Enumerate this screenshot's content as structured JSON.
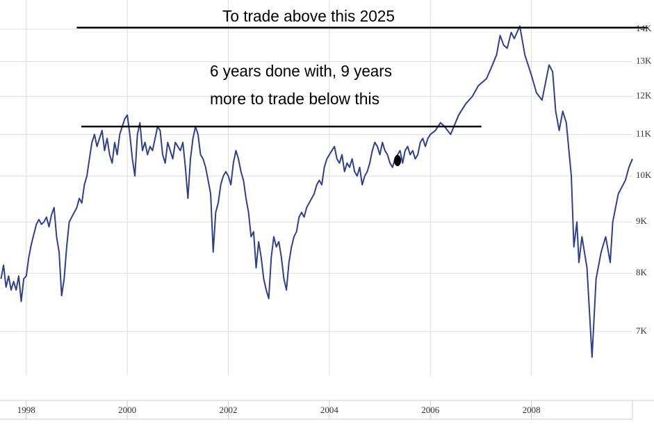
{
  "chart_data": {
    "type": "line",
    "color": "#2e3f8f",
    "log_scale": true,
    "grid": true,
    "x": [
      1997.5,
      1997.55,
      1997.6,
      1997.65,
      1997.7,
      1997.75,
      1997.8,
      1997.85,
      1997.9,
      1997.95,
      1998.0,
      1998.05,
      1998.1,
      1998.15,
      1998.2,
      1998.25,
      1998.3,
      1998.35,
      1998.4,
      1998.45,
      1998.5,
      1998.55,
      1998.6,
      1998.65,
      1998.7,
      1998.75,
      1998.8,
      1998.85,
      1998.9,
      1998.95,
      1999.0,
      1999.05,
      1999.1,
      1999.15,
      1999.2,
      1999.25,
      1999.3,
      1999.35,
      1999.4,
      1999.45,
      1999.5,
      1999.55,
      1999.6,
      1999.65,
      1999.7,
      1999.75,
      1999.8,
      1999.85,
      1999.9,
      1999.95,
      2000.0,
      2000.05,
      2000.1,
      2000.15,
      2000.2,
      2000.25,
      2000.3,
      2000.35,
      2000.4,
      2000.45,
      2000.5,
      2000.55,
      2000.6,
      2000.65,
      2000.7,
      2000.75,
      2000.8,
      2000.85,
      2000.9,
      2000.95,
      2001.0,
      2001.05,
      2001.1,
      2001.15,
      2001.2,
      2001.25,
      2001.3,
      2001.35,
      2001.4,
      2001.45,
      2001.5,
      2001.55,
      2001.6,
      2001.65,
      2001.7,
      2001.75,
      2001.8,
      2001.85,
      2001.9,
      2001.95,
      2002.0,
      2002.05,
      2002.1,
      2002.15,
      2002.2,
      2002.25,
      2002.3,
      2002.35,
      2002.4,
      2002.45,
      2002.5,
      2002.55,
      2002.6,
      2002.65,
      2002.7,
      2002.75,
      2002.8,
      2002.85,
      2002.9,
      2002.95,
      2003.0,
      2003.05,
      2003.1,
      2003.15,
      2003.2,
      2003.25,
      2003.3,
      2003.35,
      2003.4,
      2003.45,
      2003.5,
      2003.55,
      2003.6,
      2003.65,
      2003.7,
      2003.75,
      2003.8,
      2003.85,
      2003.9,
      2003.95,
      2004.0,
      2004.05,
      2004.1,
      2004.15,
      2004.2,
      2004.25,
      2004.3,
      2004.35,
      2004.4,
      2004.45,
      2004.5,
      2004.55,
      2004.6,
      2004.65,
      2004.7,
      2004.75,
      2004.8,
      2004.85,
      2004.9,
      2004.95,
      2005.0,
      2005.05,
      2005.1,
      2005.15,
      2005.2,
      2005.25,
      2005.3,
      2005.35,
      2005.4,
      2005.45,
      2005.5,
      2005.55,
      2005.6,
      2005.65,
      2005.7,
      2005.75,
      2005.8,
      2005.85,
      2005.9,
      2005.95,
      2006.0,
      2006.1,
      2006.2,
      2006.28,
      2006.4,
      2006.56,
      2006.7,
      2006.83,
      2006.95,
      2007.11,
      2007.2,
      2007.31,
      2007.38,
      2007.45,
      2007.52,
      2007.6,
      2007.66,
      2007.77,
      2007.87,
      2008.0,
      2008.1,
      2008.21,
      2008.35,
      2008.42,
      2008.48,
      2008.55,
      2008.62,
      2008.69,
      2008.79,
      2008.84,
      2008.9,
      2008.94,
      2009.0,
      2009.1,
      2009.2,
      2009.28,
      2009.38,
      2009.47,
      2009.56,
      2009.61,
      2009.72,
      2009.86,
      2009.93,
      2010.0
    ],
    "values": [
      7900,
      8150,
      7750,
      7950,
      7700,
      7850,
      7700,
      7950,
      7500,
      7900,
      7950,
      8300,
      8550,
      8750,
      8950,
      9050,
      8950,
      9000,
      9100,
      8900,
      9150,
      9300,
      8700,
      8400,
      7600,
      7900,
      8500,
      9000,
      9100,
      9200,
      9300,
      9500,
      9400,
      9800,
      10000,
      10400,
      10800,
      11000,
      10700,
      10900,
      11100,
      10600,
      10900,
      10500,
      10300,
      10800,
      10500,
      11000,
      11200,
      11400,
      11500,
      11000,
      10400,
      10000,
      11000,
      11300,
      10600,
      10800,
      10500,
      10700,
      10600,
      10900,
      11200,
      11100,
      10500,
      10300,
      10800,
      10600,
      10400,
      10800,
      10700,
      10600,
      10800,
      10200,
      9500,
      10400,
      10900,
      11200,
      11000,
      10500,
      10400,
      10200,
      9900,
      9600,
      8400,
      9200,
      9400,
      9800,
      10000,
      10100,
      10000,
      9800,
      10300,
      10600,
      10400,
      10100,
      9900,
      9500,
      9200,
      8700,
      8800,
      8100,
      8600,
      8300,
      7900,
      7700,
      7550,
      8300,
      8700,
      8500,
      8600,
      8300,
      7900,
      7700,
      8200,
      8500,
      8700,
      8800,
      9100,
      9200,
      9100,
      9300,
      9400,
      9500,
      9600,
      9800,
      9900,
      9800,
      10200,
      10400,
      10500,
      10600,
      10700,
      10400,
      10300,
      10500,
      10100,
      10300,
      10200,
      10400,
      10100,
      10000,
      10200,
      9800,
      10000,
      10100,
      10300,
      10600,
      10800,
      10700,
      10500,
      10800,
      10600,
      10500,
      10300,
      10200,
      10400,
      10500,
      10600,
      10300,
      10600,
      10700,
      10500,
      10600,
      10400,
      10500,
      10800,
      10900,
      10700,
      10900,
      11000,
      11100,
      11300,
      11200,
      11000,
      11500,
      11800,
      12000,
      12300,
      12500,
      12800,
      13200,
      13800,
      13500,
      13400,
      13900,
      13700,
      14100,
      13200,
      12600,
      12100,
      11900,
      12900,
      12700,
      11600,
      11100,
      11600,
      11300,
      10000,
      8500,
      9000,
      8200,
      8700,
      8100,
      6600,
      7900,
      8400,
      8700,
      8200,
      9000,
      9600,
      9900,
      10200,
      10400
    ],
    "xlim": [
      1997.48,
      2010.0
    ],
    "xticks": [
      1998,
      2000,
      2002,
      2004,
      2006,
      2008
    ],
    "ylim": [
      6330,
      14970
    ],
    "yticks": [
      {
        "value": 14000,
        "label": "14K"
      },
      {
        "value": 13000,
        "label": "13K"
      },
      {
        "value": 12000,
        "label": "12K"
      },
      {
        "value": 11000,
        "label": "11K"
      },
      {
        "value": 10000,
        "label": "10K"
      },
      {
        "value": 9000,
        "label": "9K"
      },
      {
        "value": 8000,
        "label": "8K"
      },
      {
        "value": 7000,
        "label": "7K"
      }
    ],
    "annotations": [
      "To trade above this 2025",
      "6 years done with, 9 years",
      "more to trade below this"
    ],
    "reference_lines": [
      {
        "value": 14050,
        "x": [
          1999.0,
          2010.3
        ]
      },
      {
        "value": 11200,
        "x": [
          1999.09,
          2007.01
        ]
      }
    ],
    "highlight": {
      "x": 2005.35,
      "value": 10360
    }
  }
}
